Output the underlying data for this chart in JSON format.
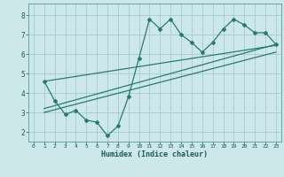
{
  "title": "",
  "xlabel": "Humidex (Indice chaleur)",
  "ylabel": "",
  "bg_color": "#cce8ea",
  "grid_color": "#aacfd2",
  "line_color": "#2a7a72",
  "xlim": [
    -0.5,
    23.5
  ],
  "ylim": [
    1.5,
    8.6
  ],
  "xticks": [
    0,
    1,
    2,
    3,
    4,
    5,
    6,
    7,
    8,
    9,
    10,
    11,
    12,
    13,
    14,
    15,
    16,
    17,
    18,
    19,
    20,
    21,
    22,
    23
  ],
  "yticks": [
    2,
    3,
    4,
    5,
    6,
    7,
    8
  ],
  "curve1_x": [
    1,
    2,
    3,
    4,
    5,
    6,
    7,
    8,
    9,
    10,
    11,
    12,
    13,
    14,
    15,
    16,
    17,
    18,
    19,
    20,
    21,
    22,
    23
  ],
  "curve1_y": [
    4.6,
    3.6,
    2.9,
    3.1,
    2.6,
    2.5,
    1.8,
    2.3,
    3.8,
    5.8,
    7.8,
    7.3,
    7.8,
    7.0,
    6.6,
    6.1,
    6.6,
    7.3,
    7.8,
    7.5,
    7.1,
    7.1,
    6.5
  ],
  "line1_x": [
    1,
    23
  ],
  "line1_y": [
    3.2,
    6.5
  ],
  "line2_x": [
    1,
    23
  ],
  "line2_y": [
    3.0,
    6.1
  ],
  "line3_x": [
    1,
    23
  ],
  "line3_y": [
    4.6,
    6.45
  ]
}
